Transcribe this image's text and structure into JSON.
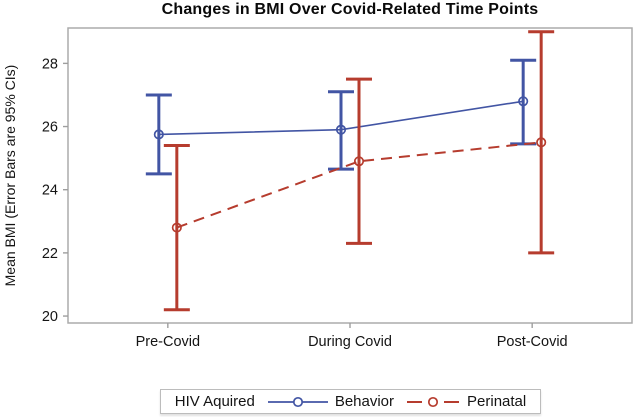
{
  "chart_data": {
    "type": "line",
    "title": "Changes in BMI Over Covid-Related Time Points",
    "ylabel": "Mean BMI (Error Bars are 95% CIs)",
    "xlabel": "",
    "categories": [
      "Pre-Covid",
      "During Covid",
      "Post-Covid"
    ],
    "y_ticks": [
      20,
      22,
      24,
      26,
      28
    ],
    "ylim": [
      19.78,
      29.12
    ],
    "grid": false,
    "error_bars": "95% confidence intervals",
    "legend": {
      "position": "bottom",
      "title": "HIV Aquired"
    },
    "series": [
      {
        "name": "Behavior",
        "color": "#4255A4",
        "line_style": "solid",
        "marker": "open-circle",
        "values": [
          25.75,
          25.9,
          26.8
        ],
        "ci_low": [
          24.5,
          24.65,
          25.45
        ],
        "ci_high": [
          27.0,
          27.1,
          28.1
        ]
      },
      {
        "name": "Perinatal",
        "color": "#B63C2E",
        "line_style": "dashed",
        "marker": "open-circle",
        "values": [
          22.8,
          24.9,
          25.5
        ],
        "ci_low": [
          20.2,
          22.3,
          22.0
        ],
        "ci_high": [
          25.4,
          27.5,
          29.0
        ]
      }
    ]
  },
  "colors": {
    "frame": "#ababab",
    "tick": "#9e9e9e",
    "text": "#141414",
    "background": "#ffffff"
  }
}
